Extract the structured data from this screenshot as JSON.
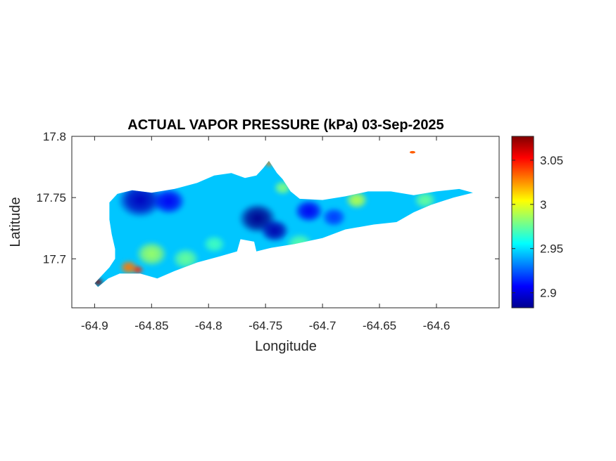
{
  "chart_data": {
    "type": "heatmap",
    "title": "ACTUAL VAPOR PRESSURE (kPa) 03-Sep-2025",
    "xlabel": "Longitude",
    "ylabel": "Latitude",
    "xlim": [
      -64.92,
      -64.545
    ],
    "ylim": [
      17.66,
      17.8
    ],
    "xticks": [
      "-64.9",
      "-64.85",
      "-64.8",
      "-64.75",
      "-64.7",
      "-64.65",
      "-64.6"
    ],
    "yticks": [
      "17.7",
      "17.75",
      "17.8"
    ],
    "colorbar": {
      "colormap": "jet",
      "range": [
        2.883,
        3.077
      ],
      "ticks": [
        "2.9",
        "2.95",
        "3",
        "3.05"
      ]
    },
    "grid": false,
    "island_outline": [
      [
        -64.9,
        17.68
      ],
      [
        -64.893,
        17.687
      ],
      [
        -64.887,
        17.693
      ],
      [
        -64.882,
        17.7
      ],
      [
        -64.882,
        17.708
      ],
      [
        -64.885,
        17.72
      ],
      [
        -64.887,
        17.732
      ],
      [
        -64.887,
        17.746
      ],
      [
        -64.88,
        17.753
      ],
      [
        -64.867,
        17.756
      ],
      [
        -64.85,
        17.754
      ],
      [
        -64.83,
        17.757
      ],
      [
        -64.81,
        17.762
      ],
      [
        -64.795,
        17.768
      ],
      [
        -64.78,
        17.77
      ],
      [
        -64.768,
        17.766
      ],
      [
        -64.758,
        17.768
      ],
      [
        -64.752,
        17.774
      ],
      [
        -64.747,
        17.78
      ],
      [
        -64.74,
        17.77
      ],
      [
        -64.735,
        17.765
      ],
      [
        -64.728,
        17.755
      ],
      [
        -64.72,
        17.749
      ],
      [
        -64.7,
        17.748
      ],
      [
        -64.68,
        17.751
      ],
      [
        -64.66,
        17.755
      ],
      [
        -64.64,
        17.755
      ],
      [
        -64.62,
        17.752
      ],
      [
        -64.6,
        17.755
      ],
      [
        -64.58,
        17.757
      ],
      [
        -64.568,
        17.754
      ],
      [
        -64.585,
        17.75
      ],
      [
        -64.605,
        17.744
      ],
      [
        -64.62,
        17.738
      ],
      [
        -64.635,
        17.73
      ],
      [
        -64.655,
        17.728
      ],
      [
        -64.68,
        17.724
      ],
      [
        -64.7,
        17.717
      ],
      [
        -64.725,
        17.712
      ],
      [
        -64.745,
        17.709
      ],
      [
        -64.758,
        17.706
      ],
      [
        -64.76,
        17.714
      ],
      [
        -64.772,
        17.716
      ],
      [
        -64.775,
        17.706
      ],
      [
        -64.79,
        17.702
      ],
      [
        -64.81,
        17.697
      ],
      [
        -64.83,
        17.69
      ],
      [
        -64.845,
        17.684
      ],
      [
        -64.86,
        17.688
      ],
      [
        -64.878,
        17.688
      ],
      [
        -64.888,
        17.684
      ],
      [
        -64.897,
        17.677
      ]
    ],
    "value_field": {
      "background": 2.945,
      "hotspots": [
        {
          "lon": -64.86,
          "lat": 17.748,
          "value": 2.895,
          "r": 0.02
        },
        {
          "lon": -64.835,
          "lat": 17.747,
          "value": 2.905,
          "r": 0.015
        },
        {
          "lon": -64.757,
          "lat": 17.733,
          "value": 2.886,
          "r": 0.017
        },
        {
          "lon": -64.742,
          "lat": 17.723,
          "value": 2.892,
          "r": 0.013
        },
        {
          "lon": -64.712,
          "lat": 17.739,
          "value": 2.905,
          "r": 0.013
        },
        {
          "lon": -64.69,
          "lat": 17.734,
          "value": 2.918,
          "r": 0.011
        },
        {
          "lon": -64.85,
          "lat": 17.704,
          "value": 2.985,
          "r": 0.014
        },
        {
          "lon": -64.82,
          "lat": 17.7,
          "value": 2.975,
          "r": 0.012
        },
        {
          "lon": -64.795,
          "lat": 17.712,
          "value": 2.968,
          "r": 0.01
        },
        {
          "lon": -64.735,
          "lat": 17.758,
          "value": 2.98,
          "r": 0.008
        },
        {
          "lon": -64.67,
          "lat": 17.748,
          "value": 2.99,
          "r": 0.01
        },
        {
          "lon": -64.61,
          "lat": 17.748,
          "value": 2.975,
          "r": 0.01
        },
        {
          "lon": -64.72,
          "lat": 17.712,
          "value": 2.972,
          "r": 0.012
        },
        {
          "lon": -64.87,
          "lat": 17.693,
          "value": 3.03,
          "r": 0.008
        },
        {
          "lon": -64.862,
          "lat": 17.691,
          "value": 3.045,
          "r": 0.005
        },
        {
          "lon": -64.897,
          "lat": 17.681,
          "value": 3.077,
          "r": 0.005
        },
        {
          "lon": -64.747,
          "lat": 17.778,
          "value": 3.03,
          "r": 0.004
        }
      ]
    },
    "islet": {
      "lon": -64.621,
      "lat": 17.787,
      "value": 3.035
    }
  }
}
